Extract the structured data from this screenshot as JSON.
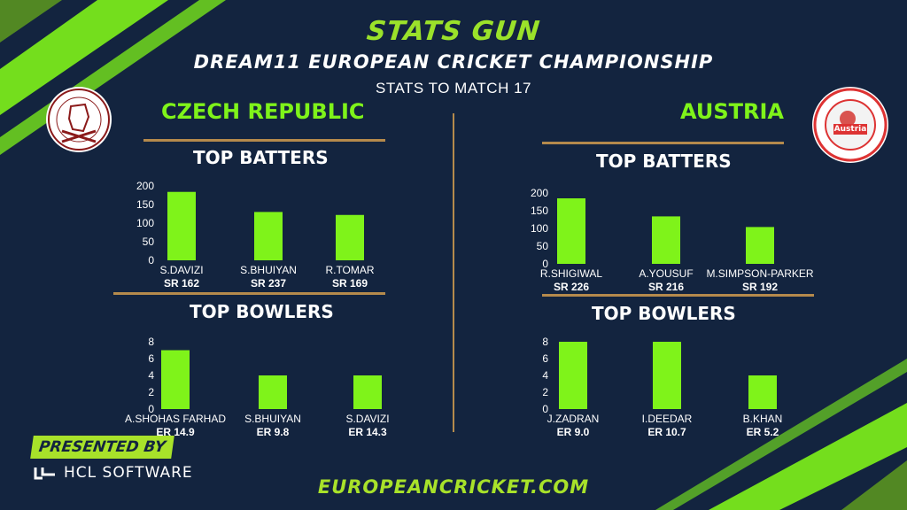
{
  "header": {
    "brand": "STATS GUN",
    "championship": "DREAM11 EUROPEAN CRICKET CHAMPIONSHIP",
    "match_note": "STATS TO MATCH 17"
  },
  "teams": {
    "left": {
      "name": "CZECH REPUBLIC",
      "logo_icon": "czech-cricket-association-crest"
    },
    "right": {
      "name": "AUSTRIA",
      "logo_icon": "austria-cricket-association-crest",
      "logo_text": "Austria"
    }
  },
  "colors": {
    "background": "#13243f",
    "accent": "#7ff31a",
    "bar": "#7ff31a",
    "divider": "#b58a4c"
  },
  "chart_data": [
    {
      "type": "bar",
      "title": "TOP BATTERS",
      "categories": [
        "S.DAVIZI",
        "S.BHUIYAN",
        "R.TOMAR"
      ],
      "sublabels": [
        "SR 162",
        "SR 237",
        "SR 169"
      ],
      "values": [
        184,
        130,
        122
      ],
      "ylim": [
        0,
        200
      ],
      "yticks": [
        0,
        50,
        100,
        150,
        200
      ],
      "grid": false
    },
    {
      "type": "bar",
      "title": "TOP BOWLERS",
      "categories": [
        "A.SHOHAS  FARHAD",
        "S.BHUIYAN",
        "S.DAVIZI"
      ],
      "sublabels": [
        "ER 14.9",
        "ER 9.8",
        "ER 14.3"
      ],
      "values": [
        7,
        4,
        4
      ],
      "ylim": [
        0,
        8
      ],
      "yticks": [
        0,
        2,
        4,
        6,
        8
      ],
      "grid": false
    },
    {
      "type": "bar",
      "title": "TOP BATTERS",
      "categories": [
        "R.SHIGIWAL",
        "A.YOUSUF",
        "M.SIMPSON-PARKER"
      ],
      "sublabels": [
        "SR 226",
        "SR 216",
        "SR 192"
      ],
      "values": [
        185,
        134,
        104
      ],
      "ylim": [
        0,
        200
      ],
      "yticks": [
        0,
        50,
        100,
        150,
        200
      ],
      "grid": false
    },
    {
      "type": "bar",
      "title": "TOP BOWLERS",
      "categories": [
        "J.ZADRAN",
        "I.DEEDAR",
        "B.KHAN"
      ],
      "sublabels": [
        "ER 9.0",
        "ER 10.7",
        "ER 5.2"
      ],
      "values": [
        8,
        8,
        4
      ],
      "ylim": [
        0,
        8
      ],
      "yticks": [
        0,
        2,
        4,
        6,
        8
      ],
      "grid": false
    }
  ],
  "footer": {
    "presented_by": "PRESENTED BY",
    "sponsor": "HCL SOFTWARE",
    "sponsor_icon": "hcl-logo-icon",
    "website": "EUROPEANCRICKET.COM"
  }
}
